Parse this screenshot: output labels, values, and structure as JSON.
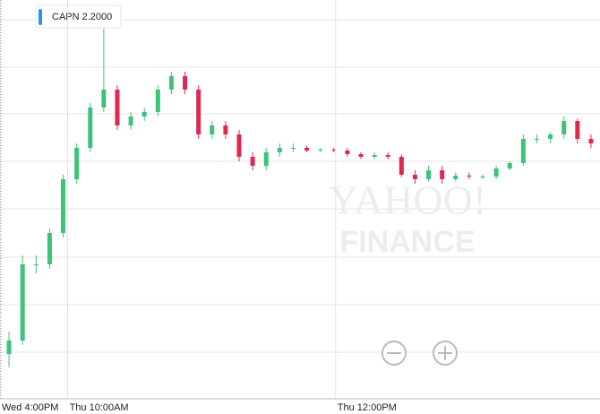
{
  "chart_data": {
    "type": "candlestick",
    "legend_label": "CAPN 2.2000",
    "watermark": [
      "YAHOO!",
      "FINANCE"
    ],
    "up_color": "#3cc37a",
    "down_color": "#e0284f",
    "legend_color": "#2196f3",
    "open": [
      1.73,
      1.76,
      1.93,
      1.93,
      2.0,
      2.12,
      2.19,
      2.28,
      2.32,
      2.24,
      2.26,
      2.27,
      2.32,
      2.35,
      2.32,
      2.22,
      2.24,
      2.22,
      2.17,
      2.15,
      2.18,
      2.19,
      2.19,
      2.184,
      2.186,
      2.184,
      2.176,
      2.17,
      2.174,
      2.17,
      2.13,
      2.12,
      2.14,
      2.12,
      2.128,
      2.126,
      2.126,
      2.144,
      2.156,
      2.21,
      2.21,
      2.22,
      2.25,
      2.21
    ],
    "high": [
      1.78,
      1.95,
      1.95,
      2.01,
      2.13,
      2.2,
      2.29,
      2.456,
      2.33,
      2.27,
      2.28,
      2.33,
      2.36,
      2.36,
      2.33,
      2.25,
      2.25,
      2.23,
      2.18,
      2.19,
      2.2,
      2.2,
      2.195,
      2.19,
      2.19,
      2.19,
      2.18,
      2.18,
      2.18,
      2.175,
      2.14,
      2.15,
      2.15,
      2.135,
      2.135,
      2.13,
      2.15,
      2.16,
      2.22,
      2.22,
      2.225,
      2.26,
      2.255,
      2.22
    ],
    "low": [
      1.7,
      1.75,
      1.91,
      1.92,
      1.99,
      2.11,
      2.18,
      2.27,
      2.23,
      2.23,
      2.25,
      2.26,
      2.31,
      2.31,
      2.21,
      2.21,
      2.21,
      2.16,
      2.14,
      2.14,
      2.17,
      2.18,
      2.18,
      2.18,
      2.18,
      2.17,
      2.165,
      2.165,
      2.165,
      2.125,
      2.11,
      2.115,
      2.11,
      2.115,
      2.12,
      2.12,
      2.12,
      2.14,
      2.15,
      2.2,
      2.2,
      2.21,
      2.2,
      2.19
    ],
    "close": [
      1.76,
      1.93,
      1.93,
      2.0,
      2.12,
      2.19,
      2.28,
      2.32,
      2.24,
      2.26,
      2.27,
      2.32,
      2.35,
      2.32,
      2.22,
      2.24,
      2.22,
      2.17,
      2.15,
      2.18,
      2.19,
      2.19,
      2.184,
      2.186,
      2.184,
      2.176,
      2.17,
      2.174,
      2.17,
      2.13,
      2.12,
      2.14,
      2.12,
      2.128,
      2.126,
      2.126,
      2.144,
      2.156,
      2.21,
      2.21,
      2.22,
      2.25,
      2.21,
      2.2
    ],
    "ylim": [
      1.63,
      2.52
    ],
    "xlim": [
      -0.667,
      43.667
    ],
    "xticks": [
      {
        "value": -0.667,
        "label": "Wed 4:00PM"
      },
      {
        "value": 4.333,
        "label": "Thu 10:00AM"
      },
      {
        "value": 24.133,
        "label": "Thu 12:00PM"
      }
    ],
    "grid": true
  }
}
